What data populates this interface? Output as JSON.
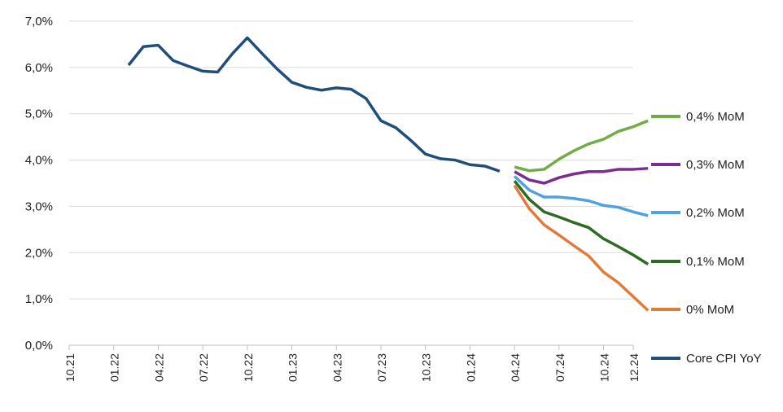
{
  "chart_data": {
    "type": "line",
    "title": "",
    "xlabel": "",
    "ylabel": "",
    "ylim": [
      0,
      7
    ],
    "yticks": [
      "0,0%",
      "1,0%",
      "2,0%",
      "3,0%",
      "4,0%",
      "5,0%",
      "6,0%",
      "7,0%"
    ],
    "xticks": [
      "10.21",
      "01.22",
      "04.22",
      "07.22",
      "10.22",
      "01.23",
      "04.23",
      "07.23",
      "10.23",
      "01.24",
      "04.24",
      "07.24",
      "10.24",
      "12.24"
    ],
    "x_months_start": "10.21",
    "grid": true,
    "legend_position": "right",
    "series": [
      {
        "name": "Core CPI YoY",
        "color": "#1f4e79",
        "start_month": "02.22",
        "values": [
          6.05,
          6.45,
          6.48,
          6.15,
          6.03,
          5.92,
          5.9,
          6.3,
          6.64,
          6.3,
          5.97,
          5.68,
          5.57,
          5.51,
          5.56,
          5.53,
          5.33,
          4.85,
          4.7,
          4.43,
          4.13,
          4.03,
          4.0,
          3.9,
          3.87,
          3.76
        ]
      },
      {
        "name": "0,4% MoM",
        "color": "#70ad47",
        "start_month": "04.24",
        "values": [
          3.85,
          3.77,
          3.8,
          4.02,
          4.2,
          4.35,
          4.45,
          4.62,
          4.72,
          4.85
        ]
      },
      {
        "name": "0,3% MoM",
        "color": "#7b2c8f",
        "start_month": "04.24",
        "values": [
          3.75,
          3.57,
          3.5,
          3.62,
          3.7,
          3.75,
          3.75,
          3.8,
          3.8,
          3.82
        ]
      },
      {
        "name": "0,2% MoM",
        "color": "#4fa3dc",
        "start_month": "04.24",
        "values": [
          3.65,
          3.35,
          3.2,
          3.2,
          3.17,
          3.12,
          3.02,
          2.98,
          2.88,
          2.8
        ]
      },
      {
        "name": "0,1% MoM",
        "color": "#2e6a23",
        "start_month": "04.24",
        "values": [
          3.55,
          3.15,
          2.88,
          2.77,
          2.65,
          2.54,
          2.3,
          2.13,
          1.95,
          1.75
        ]
      },
      {
        "name": "0% MoM",
        "color": "#e07b3c",
        "start_month": "04.24",
        "values": [
          3.45,
          2.95,
          2.6,
          2.38,
          2.15,
          1.93,
          1.58,
          1.35,
          1.05,
          0.75
        ]
      }
    ],
    "legend": [
      {
        "name": "0,4% MoM",
        "color": "#70ad47"
      },
      {
        "name": "0,3% MoM",
        "color": "#7b2c8f"
      },
      {
        "name": "0,2% MoM",
        "color": "#4fa3dc"
      },
      {
        "name": "0,1% MoM",
        "color": "#2e6a23"
      },
      {
        "name": "0% MoM",
        "color": "#e07b3c"
      },
      {
        "name": "Core CPI YoY",
        "color": "#1f4e79"
      }
    ]
  }
}
